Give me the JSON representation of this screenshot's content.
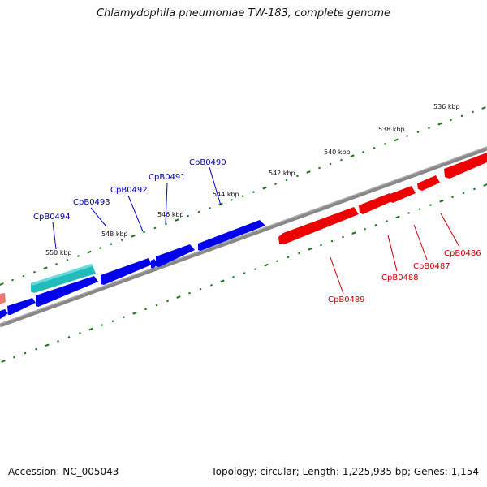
{
  "title": "Chlamydophila pneumoniae TW-183, complete genome",
  "footer": {
    "accession": "Accession: NC_005043",
    "topology": "Topology: circular; Length: 1,225,935 bp; Genes: 1,154"
  },
  "scale_ticks": [
    "536 kbp",
    "538 kbp",
    "540 kbp",
    "542 kbp",
    "544 kbp",
    "546 kbp",
    "548 kbp",
    "550 kbp"
  ],
  "genes": [
    {
      "name": "CpB0486",
      "strand": "reverse",
      "color": "#ee0000"
    },
    {
      "name": "CpB0487",
      "strand": "reverse",
      "color": "#ee0000"
    },
    {
      "name": "CpB0488",
      "strand": "reverse",
      "color": "#ee0000"
    },
    {
      "name": "CpB0489",
      "strand": "reverse",
      "color": "#ee0000"
    },
    {
      "name": "CpB0490",
      "strand": "forward",
      "color": "#0000cc"
    },
    {
      "name": "CpB0491",
      "strand": "forward",
      "color": "#0000cc"
    },
    {
      "name": "CpB0492",
      "strand": "forward",
      "color": "#0000cc"
    },
    {
      "name": "CpB0493",
      "strand": "forward",
      "color": "#0000cc"
    },
    {
      "name": "CpB0494",
      "strand": "forward",
      "color": "#0000cc"
    }
  ],
  "colors": {
    "forward_gene": "#0000ee",
    "reverse_gene": "#ee0000",
    "rna_gene": "#22bbbb",
    "backbone": "#777777",
    "tick": "#1a7a1a",
    "forward_label": "#0000aa",
    "reverse_label": "#cc0000"
  }
}
